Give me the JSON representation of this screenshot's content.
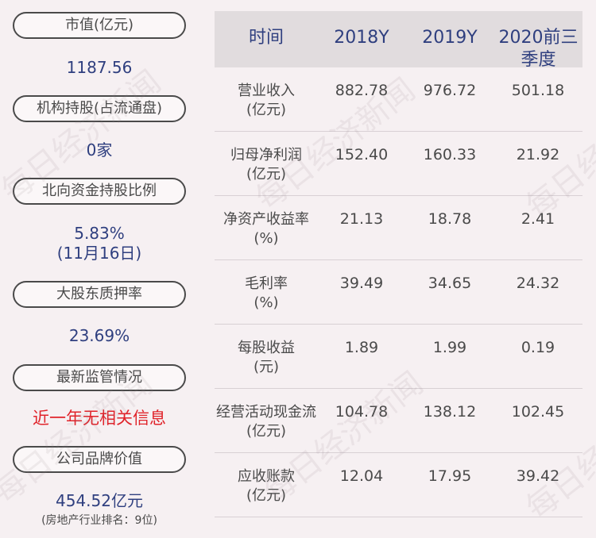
{
  "left_panel": {
    "items": [
      {
        "label": "市值(亿元)",
        "value": "1187.56"
      },
      {
        "label": "机构持股(占流通盘)",
        "value": "0家"
      },
      {
        "label": "北向资金持股比例",
        "value": "5.83%",
        "value_line2": "(11月16日)"
      },
      {
        "label": "大股东质押率",
        "value": "23.69%"
      },
      {
        "label": "最新监管情况",
        "value": "近一年无相关信息",
        "value_color": "#e0232a"
      },
      {
        "label": "公司品牌价值",
        "value": "454.52亿元",
        "note": "(房地产行业排名：9位)"
      }
    ]
  },
  "table": {
    "headers": {
      "col0": "时间",
      "col1": "2018Y",
      "col2": "2019Y",
      "col3": "2020前三季度"
    },
    "rows": [
      {
        "metric": "营业收入",
        "unit": "(亿元)",
        "v1": "882.78",
        "v2": "976.72",
        "v3": "501.18"
      },
      {
        "metric": "归母净利润",
        "unit": "(亿元)",
        "v1": "152.40",
        "v2": "160.33",
        "v3": "21.92"
      },
      {
        "metric": "净资产收益率",
        "unit": "(%)",
        "v1": "21.13",
        "v2": "18.78",
        "v3": "2.41"
      },
      {
        "metric": "毛利率",
        "unit": "(%)",
        "v1": "39.49",
        "v2": "34.65",
        "v3": "24.32"
      },
      {
        "metric": "每股收益",
        "unit": "(元)",
        "v1": "1.89",
        "v2": "1.99",
        "v3": "0.19"
      },
      {
        "metric": "经营活动现金流",
        "unit": "(亿元)",
        "v1": "104.78",
        "v2": "138.12",
        "v3": "102.45"
      },
      {
        "metric": "应收账款",
        "unit": "(亿元)",
        "v1": "12.04",
        "v2": "17.95",
        "v3": "39.42"
      }
    ]
  },
  "watermark": "每日经济新闻",
  "colors": {
    "value_blue": "#2f3f7f",
    "alert_red": "#e0232a",
    "header_bg": "#e1dcde"
  }
}
